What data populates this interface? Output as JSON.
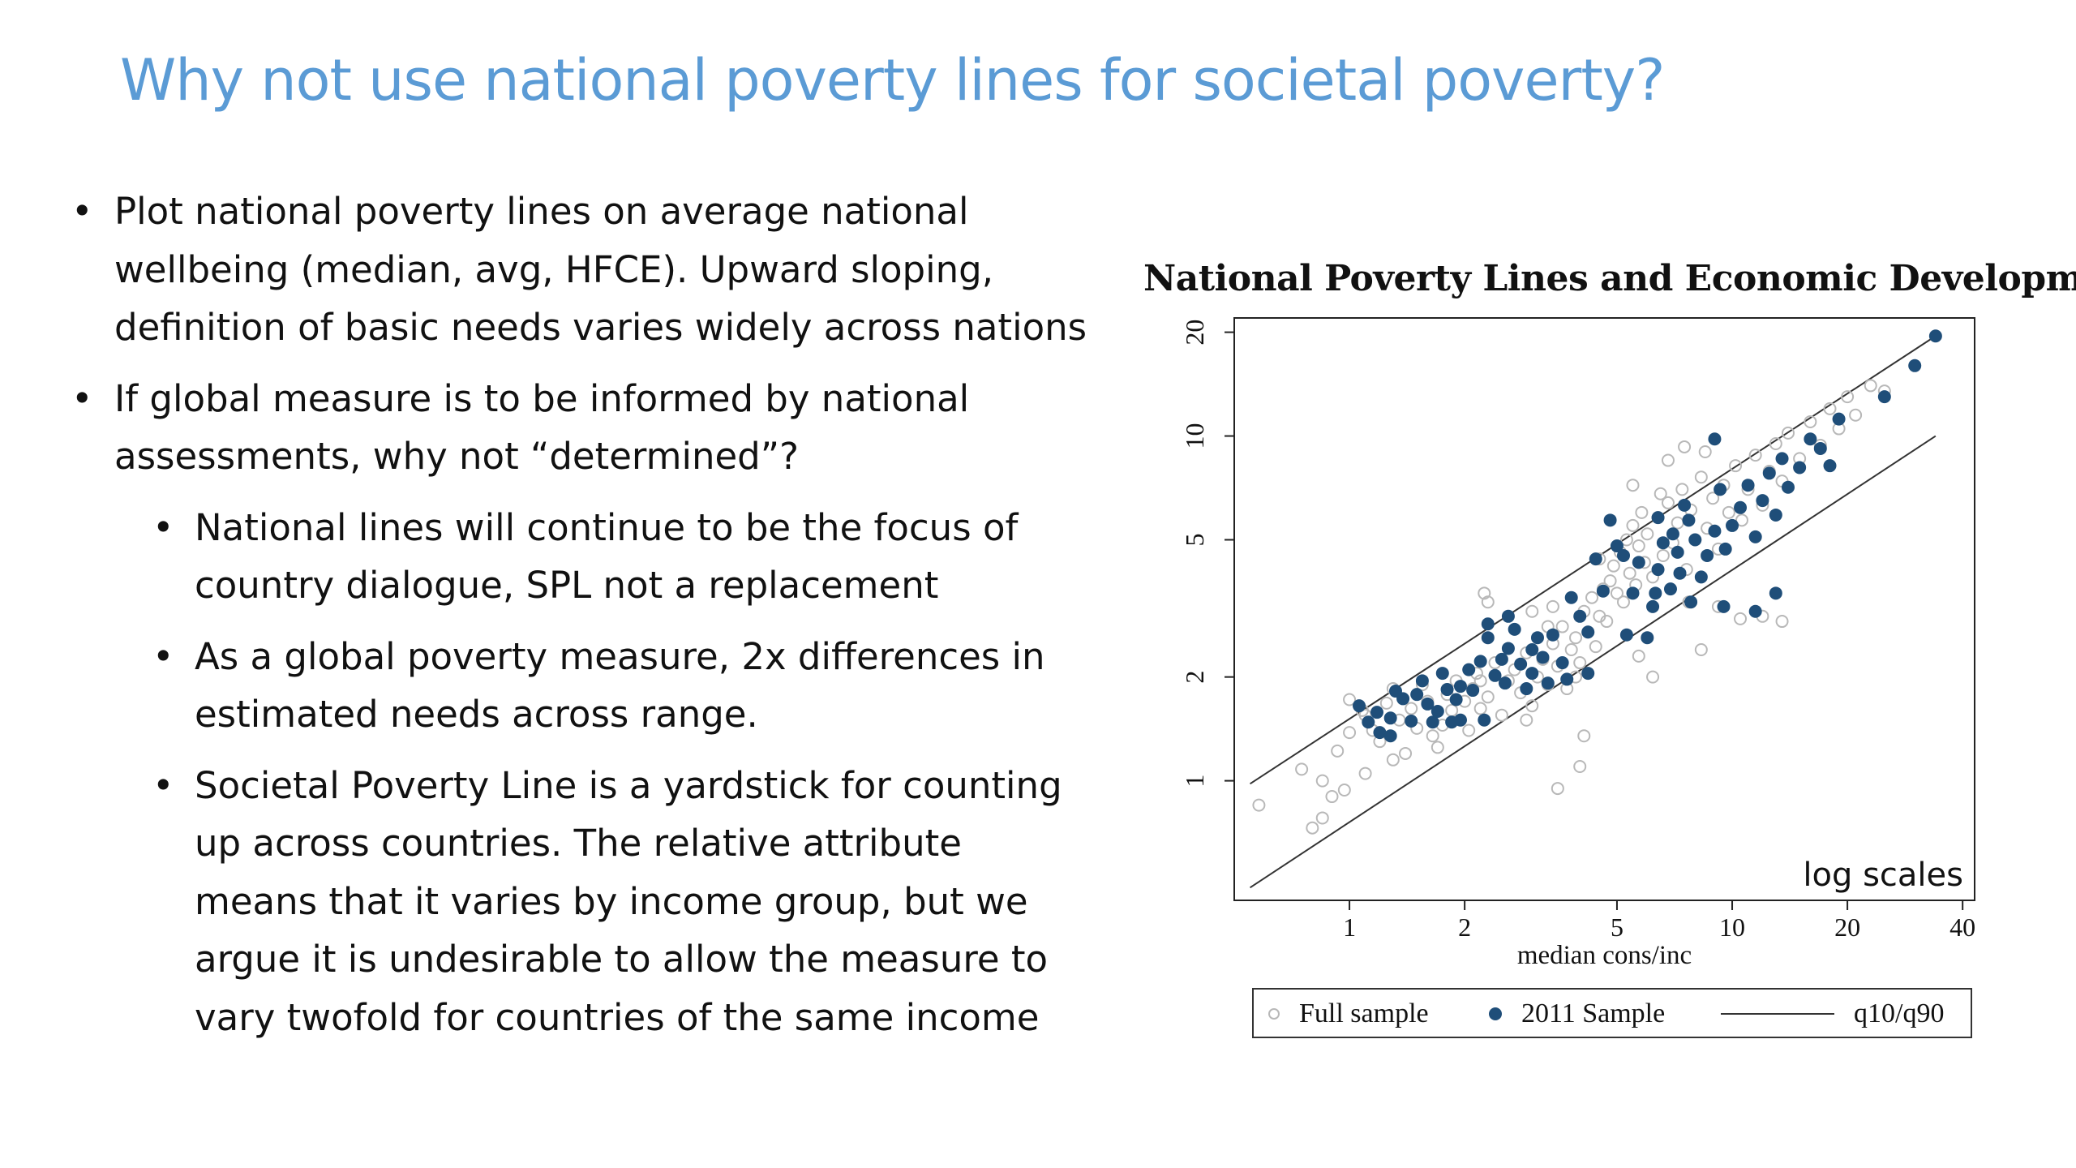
{
  "slide": {
    "title": "Why not use national poverty lines for societal poverty?",
    "bullets": [
      {
        "level": 1,
        "text": "Plot national poverty lines on average national wellbeing (median, avg, HFCE). Upward sloping, definition of basic needs varies widely across nations"
      },
      {
        "level": 1,
        "text": "If global measure is to be informed by national assessments, why not “determined”?"
      },
      {
        "level": 2,
        "text": "National lines will continue to be the focus of country dialogue, SPL not a replacement"
      },
      {
        "level": 2,
        "text": "As a global poverty measure, 2x differences in estimated needs across range."
      },
      {
        "level": 2,
        "text": "Societal Poverty Line is a yardstick for counting up across countries. The relative attribute means that it varies by income group, but we argue it is undesirable to allow the measure to vary twofold for countries of the same income"
      }
    ],
    "bullet_symbol": "•"
  },
  "colors": {
    "title": "#5b9bd5",
    "full_sample_marker": "#b8b8b8",
    "sample_2011_marker": "#1f4e79",
    "line": "#333333"
  },
  "chart_data": {
    "type": "scatter",
    "title": "National Poverty Lines and Economic Development",
    "xlabel": "median cons/inc",
    "ylabel": "",
    "x_scale": "log",
    "y_scale": "log",
    "xlim": [
      0.5,
      43
    ],
    "ylim": [
      0.45,
      22
    ],
    "x_ticks": [
      1,
      2,
      5,
      10,
      20,
      40
    ],
    "y_ticks": [
      1,
      2,
      5,
      10,
      20
    ],
    "annotation": "log scales",
    "legend": {
      "position": "bottom",
      "entries": [
        "Full sample",
        "2011 Sample",
        "q10/q90"
      ]
    },
    "series": [
      {
        "name": "Full sample",
        "marker": "hollow-circle",
        "points": [
          [
            0.58,
            0.85
          ],
          [
            0.8,
            0.73
          ],
          [
            0.85,
            0.78
          ],
          [
            0.9,
            0.9
          ],
          [
            0.97,
            0.94
          ],
          [
            0.85,
            1.0
          ],
          [
            0.75,
            1.08
          ],
          [
            0.93,
            1.22
          ],
          [
            1.0,
            1.38
          ],
          [
            1.08,
            1.6
          ],
          [
            1.0,
            1.72
          ],
          [
            1.1,
            1.55
          ],
          [
            1.15,
            1.4
          ],
          [
            1.2,
            1.3
          ],
          [
            1.25,
            1.68
          ],
          [
            1.3,
            1.85
          ],
          [
            1.35,
            1.5
          ],
          [
            1.4,
            1.2
          ],
          [
            1.45,
            1.62
          ],
          [
            1.5,
            1.42
          ],
          [
            1.55,
            1.9
          ],
          [
            1.6,
            1.7
          ],
          [
            1.65,
            1.35
          ],
          [
            1.7,
            1.25
          ],
          [
            1.75,
            1.45
          ],
          [
            1.8,
            1.78
          ],
          [
            1.85,
            1.6
          ],
          [
            1.9,
            1.95
          ],
          [
            1.95,
            1.5
          ],
          [
            2.0,
            1.7
          ],
          [
            2.05,
            1.4
          ],
          [
            2.1,
            1.85
          ],
          [
            2.15,
            2.05
          ],
          [
            2.2,
            1.62
          ],
          [
            2.3,
            1.75
          ],
          [
            2.4,
            2.2
          ],
          [
            2.5,
            1.55
          ],
          [
            2.6,
            1.95
          ],
          [
            2.7,
            2.1
          ],
          [
            2.8,
            1.8
          ],
          [
            2.9,
            2.35
          ],
          [
            3.0,
            1.65
          ],
          [
            3.1,
            2.0
          ],
          [
            3.2,
            2.25
          ],
          [
            3.3,
            1.9
          ],
          [
            3.4,
            2.5
          ],
          [
            3.5,
            2.15
          ],
          [
            3.6,
            2.8
          ],
          [
            3.7,
            1.85
          ],
          [
            3.8,
            2.4
          ],
          [
            3.9,
            2.6
          ],
          [
            4.0,
            2.2
          ],
          [
            4.1,
            3.1
          ],
          [
            4.2,
            2.7
          ],
          [
            4.3,
            3.4
          ],
          [
            4.4,
            2.45
          ],
          [
            4.5,
            3.0
          ],
          [
            4.6,
            3.6
          ],
          [
            4.7,
            2.9
          ],
          [
            4.8,
            3.8
          ],
          [
            4.9,
            4.2
          ],
          [
            5.0,
            3.5
          ],
          [
            5.1,
            4.6
          ],
          [
            5.2,
            3.3
          ],
          [
            5.3,
            5.0
          ],
          [
            5.4,
            4.0
          ],
          [
            5.5,
            5.5
          ],
          [
            5.6,
            3.7
          ],
          [
            5.7,
            4.8
          ],
          [
            5.8,
            6.0
          ],
          [
            5.9,
            4.3
          ],
          [
            6.0,
            5.2
          ],
          [
            6.2,
            3.9
          ],
          [
            6.4,
            5.8
          ],
          [
            6.6,
            4.5
          ],
          [
            6.8,
            6.4
          ],
          [
            7.0,
            4.9
          ],
          [
            7.2,
            5.6
          ],
          [
            7.4,
            7.0
          ],
          [
            7.6,
            4.1
          ],
          [
            7.8,
            6.1
          ],
          [
            8.0,
            5.0
          ],
          [
            8.3,
            7.6
          ],
          [
            8.6,
            5.4
          ],
          [
            8.9,
            6.6
          ],
          [
            9.2,
            4.7
          ],
          [
            9.5,
            7.2
          ],
          [
            9.8,
            6.0
          ],
          [
            10.2,
            8.2
          ],
          [
            10.6,
            5.7
          ],
          [
            11.0,
            7.0
          ],
          [
            11.5,
            8.8
          ],
          [
            12.0,
            6.3
          ],
          [
            12.5,
            7.9
          ],
          [
            13.0,
            9.5
          ],
          [
            13.5,
            7.4
          ],
          [
            14.0,
            10.2
          ],
          [
            15.0,
            8.6
          ],
          [
            16.0,
            11.0
          ],
          [
            17.0,
            9.4
          ],
          [
            18.0,
            12.0
          ],
          [
            19.0,
            10.5
          ],
          [
            20.0,
            13.0
          ],
          [
            21.0,
            11.5
          ],
          [
            23.0,
            14.0
          ],
          [
            25.0,
            13.5
          ],
          [
            2.3,
            3.3
          ],
          [
            2.25,
            3.5
          ],
          [
            3.4,
            3.2
          ],
          [
            6.2,
            2.0
          ],
          [
            5.7,
            2.3
          ],
          [
            8.3,
            2.4
          ],
          [
            4.1,
            1.35
          ],
          [
            3.5,
            0.95
          ],
          [
            4.0,
            1.1
          ],
          [
            3.0,
            3.1
          ],
          [
            3.3,
            2.8
          ],
          [
            1.1,
            1.05
          ],
          [
            1.3,
            1.15
          ],
          [
            7.5,
            9.3
          ],
          [
            8.5,
            9.0
          ],
          [
            6.8,
            8.5
          ],
          [
            9.2,
            3.2
          ],
          [
            12.0,
            3.0
          ],
          [
            10.5,
            2.95
          ],
          [
            13.5,
            2.9
          ],
          [
            5.5,
            7.2
          ],
          [
            6.5,
            6.8
          ],
          [
            7.7,
            3.3
          ],
          [
            4.5,
            4.4
          ],
          [
            3.9,
            2.0
          ],
          [
            2.9,
            1.5
          ],
          [
            2.2,
            1.95
          ]
        ]
      },
      {
        "name": "2011 Sample",
        "marker": "filled-circle",
        "points": [
          [
            1.06,
            1.65
          ],
          [
            1.12,
            1.48
          ],
          [
            1.18,
            1.58
          ],
          [
            1.2,
            1.38
          ],
          [
            1.28,
            1.52
          ],
          [
            1.32,
            1.82
          ],
          [
            1.38,
            1.73
          ],
          [
            1.45,
            1.49
          ],
          [
            1.5,
            1.78
          ],
          [
            1.55,
            1.95
          ],
          [
            1.6,
            1.67
          ],
          [
            1.65,
            1.48
          ],
          [
            1.7,
            1.59
          ],
          [
            1.75,
            2.05
          ],
          [
            1.8,
            1.84
          ],
          [
            1.85,
            1.48
          ],
          [
            1.9,
            1.72
          ],
          [
            1.95,
            1.88
          ],
          [
            2.05,
            2.1
          ],
          [
            2.1,
            1.83
          ],
          [
            2.2,
            2.22
          ],
          [
            2.25,
            1.5
          ],
          [
            2.3,
            2.6
          ],
          [
            2.4,
            2.02
          ],
          [
            2.5,
            2.25
          ],
          [
            2.55,
            1.92
          ],
          [
            2.6,
            2.42
          ],
          [
            2.7,
            2.75
          ],
          [
            2.8,
            2.18
          ],
          [
            2.9,
            1.85
          ],
          [
            3.0,
            2.05
          ],
          [
            3.1,
            2.6
          ],
          [
            3.2,
            2.28
          ],
          [
            3.3,
            1.92
          ],
          [
            3.4,
            2.65
          ],
          [
            3.6,
            2.2
          ],
          [
            3.7,
            1.97
          ],
          [
            3.8,
            3.4
          ],
          [
            4.0,
            3.0
          ],
          [
            4.2,
            2.05
          ],
          [
            4.4,
            4.4
          ],
          [
            4.6,
            3.55
          ],
          [
            4.8,
            5.7
          ],
          [
            5.0,
            4.8
          ],
          [
            5.2,
            4.5
          ],
          [
            5.3,
            2.65
          ],
          [
            5.5,
            3.5
          ],
          [
            5.7,
            4.3
          ],
          [
            6.0,
            2.6
          ],
          [
            6.2,
            3.2
          ],
          [
            6.4,
            4.1
          ],
          [
            6.6,
            4.9
          ],
          [
            6.9,
            3.6
          ],
          [
            7.0,
            5.2
          ],
          [
            7.2,
            4.6
          ],
          [
            7.5,
            6.3
          ],
          [
            7.7,
            5.7
          ],
          [
            8.0,
            5.0
          ],
          [
            8.3,
            3.9
          ],
          [
            8.6,
            4.5
          ],
          [
            9.0,
            5.3
          ],
          [
            9.3,
            7.0
          ],
          [
            9.6,
            4.7
          ],
          [
            10.0,
            5.5
          ],
          [
            10.5,
            6.2
          ],
          [
            11.0,
            7.2
          ],
          [
            11.5,
            5.1
          ],
          [
            12.0,
            6.5
          ],
          [
            12.5,
            7.8
          ],
          [
            13.0,
            5.9
          ],
          [
            13.5,
            8.6
          ],
          [
            14.0,
            7.1
          ],
          [
            15.0,
            8.1
          ],
          [
            16.0,
            9.8
          ],
          [
            17.0,
            9.2
          ],
          [
            18.0,
            8.2
          ],
          [
            9.0,
            9.8
          ],
          [
            4.2,
            2.7
          ],
          [
            7.8,
            3.3
          ],
          [
            9.5,
            3.2
          ],
          [
            11.5,
            3.1
          ],
          [
            13.0,
            3.5
          ],
          [
            6.3,
            3.5
          ],
          [
            19.0,
            11.2
          ],
          [
            25.0,
            13.0
          ],
          [
            30.0,
            16.0
          ],
          [
            34.0,
            19.5
          ],
          [
            1.28,
            1.35
          ],
          [
            1.95,
            1.5
          ],
          [
            2.3,
            2.85
          ],
          [
            3.0,
            2.4
          ],
          [
            2.6,
            3.0
          ],
          [
            6.4,
            5.8
          ],
          [
            7.3,
            4.0
          ]
        ]
      }
    ],
    "lines": [
      {
        "name": "q10/q90",
        "segments": [
          [
            [
              0.55,
              0.98
            ],
            [
              34.0,
              19.5
            ]
          ],
          [
            [
              0.55,
              0.49
            ],
            [
              34.0,
              10.0
            ]
          ]
        ]
      }
    ]
  }
}
